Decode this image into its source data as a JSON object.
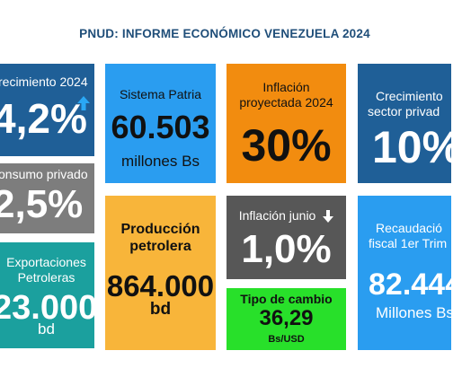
{
  "title": "PNUD: INFORME ECONÓMICO VENEZUELA 2024",
  "colors": {
    "blue_dark": "#1f5f97",
    "blue_bright": "#2a9df0",
    "orange": "#f28c0f",
    "gray": "#7d7d7d",
    "gray_dark": "#575757",
    "yellow": "#f8b53a",
    "teal": "#1ba09e",
    "green": "#28e02a",
    "title": "#1f4e79"
  },
  "tiles": {
    "crecimiento": {
      "label": "recimiento 2024",
      "value": "4,2%",
      "icon": "arrow-up-icon"
    },
    "sistema_patria": {
      "label": "Sistema Patria",
      "value": "60.503",
      "unit": "millones Bs"
    },
    "inflacion_proyectada": {
      "label_line1": "Inflación",
      "label_line2": "proyectada 2024",
      "value": "30%"
    },
    "crecimiento_privado": {
      "label_line1": "Crecimiento",
      "label_line2": "sector privad",
      "value": "10%"
    },
    "consumo_privado": {
      "label": "onsumo privado",
      "value": "2,5%"
    },
    "produccion_petrolera": {
      "label_line1": "Producción",
      "label_line2": "petrolera",
      "value": "864.000",
      "unit": "bd"
    },
    "inflacion_junio": {
      "label": "Inflación junio",
      "value": "1,0%",
      "icon": "arrow-down-icon"
    },
    "recaudacion_fiscal": {
      "label_line1": "Recaudació",
      "label_line2": "fiscal 1er Trim",
      "value": "82.444",
      "unit": "Millones Bs"
    },
    "exportaciones": {
      "label_line1": "Exportaciones",
      "label_line2": "Petroleras",
      "value": "23.000",
      "unit": "bd"
    },
    "tipo_cambio": {
      "label": "Tipo de cambio",
      "value": "36,29",
      "unit": "Bs/USD"
    }
  }
}
